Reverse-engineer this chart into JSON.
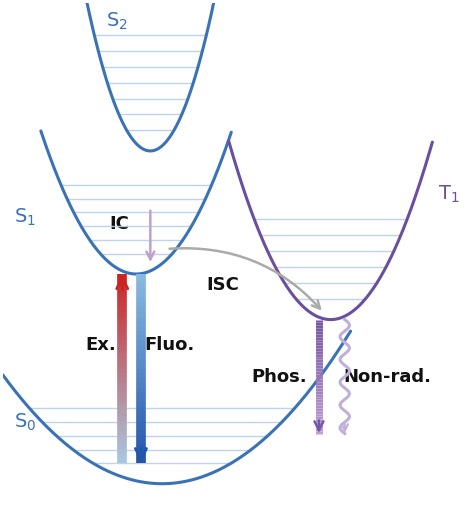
{
  "bg_color": "#ffffff",
  "curve_color_blue": "#3a72b8",
  "curve_color_purple": "#6a4fa0",
  "vib_line_color": "#b8d0e8",
  "vib_line_alpha": 0.9,
  "arrow_ex_color_top": "#cc2222",
  "arrow_ex_color_bottom": "#a8c8e0",
  "arrow_fluo_color_top": "#88aacc",
  "arrow_fluo_color_bottom": "#2255aa",
  "arrow_ic_color": "#c0a0cc",
  "arrow_isc_color": "#aaaaaa",
  "arrow_phos_color_top": "#7755aa",
  "arrow_phos_color_bottom": "#c0a0d0",
  "arrow_nonrad_color": "#c0b0d8",
  "label_color": "#111111",
  "s0_label": "S$_0$",
  "s1_label": "S$_1$",
  "s2_label": "S$_2$",
  "t1_label": "T$_1$",
  "ic_label": "IC",
  "isc_label": "ISC",
  "ex_label": "Ex.",
  "fluo_label": "Fluo.",
  "phos_label": "Phos.",
  "nonrad_label": "Non-rad.",
  "label_fontsize": 12
}
